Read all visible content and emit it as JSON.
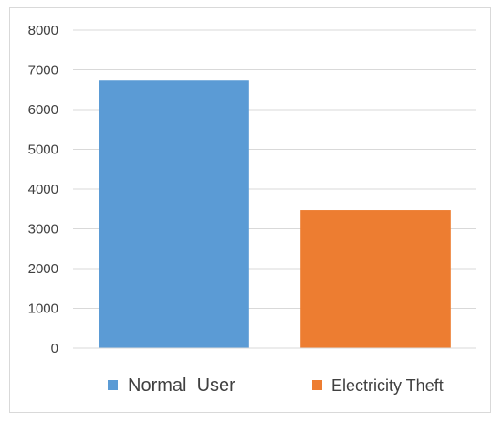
{
  "chart_data": {
    "type": "bar",
    "categories": [
      "Normal  User",
      "Electricity Theft"
    ],
    "values": [
      6730,
      3470
    ],
    "colors": [
      "#5b9bd5",
      "#ed7d31"
    ],
    "title": "",
    "xlabel": "",
    "ylabel": "",
    "ylim": [
      0,
      8000
    ],
    "yticks": [
      "0",
      "1000",
      "2000",
      "3000",
      "4000",
      "5000",
      "6000",
      "7000",
      "8000"
    ],
    "grid": true,
    "legend": "bottom"
  }
}
